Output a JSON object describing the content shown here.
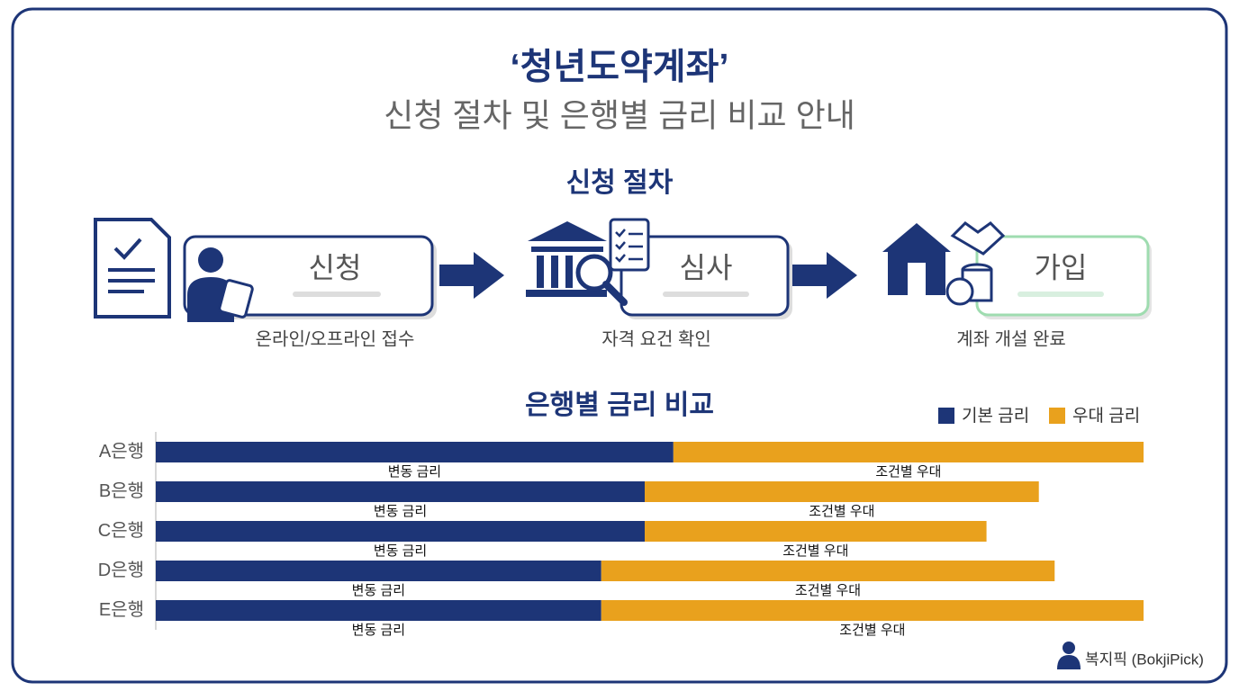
{
  "header": {
    "title": "‘청년도약계좌’",
    "subtitle": "신청 절차 및 은행별 금리 비교 안내"
  },
  "process": {
    "title": "신청 절차",
    "steps": [
      {
        "label": "신청",
        "caption": "온라인/오프라인 접수"
      },
      {
        "label": "심사",
        "caption": "자격 요건 확인"
      },
      {
        "label": "가입",
        "caption": "계좌 개설 완료"
      }
    ]
  },
  "chart_data": {
    "type": "bar",
    "orientation": "horizontal",
    "stacked": true,
    "title": "은행별 금리 비교",
    "categories": [
      "A은행",
      "B은행",
      "C은행",
      "D은행",
      "E은행"
    ],
    "series": [
      {
        "name": "기본 금리",
        "color": "#1d3577",
        "values": [
          52.4,
          49.5,
          49.5,
          45.1,
          45.1
        ],
        "labels": [
          "변동 금리",
          "변동 금리",
          "변동 금리",
          "변동 금리",
          "변동 금리"
        ]
      },
      {
        "name": "우대 금리",
        "color": "#e9a11d",
        "values": [
          47.6,
          39.9,
          34.6,
          45.9,
          54.9
        ],
        "labels": [
          "조건별 우대",
          "조건별 우대",
          "조건별 우대",
          "조건별 우대",
          "조건별 우대"
        ]
      }
    ],
    "xlim": [
      0,
      100
    ],
    "legend": "top-right"
  },
  "footer": {
    "brand": "복지픽 (BokjiPick)"
  }
}
